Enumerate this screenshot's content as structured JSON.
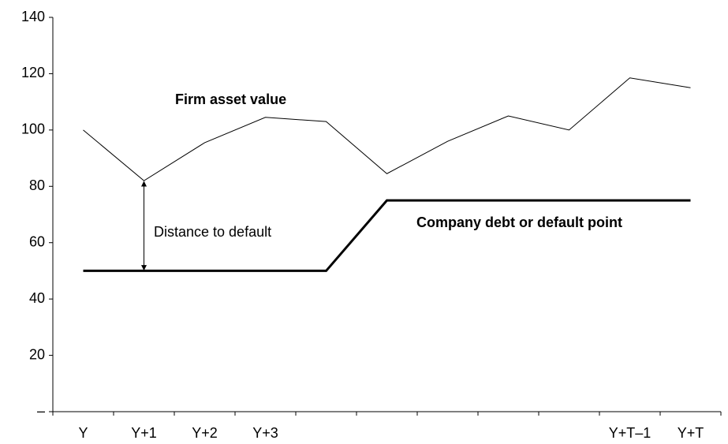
{
  "chart_data": {
    "type": "line",
    "categories": [
      "Y",
      "Y+1",
      "Y+2",
      "Y+3",
      null,
      null,
      null,
      null,
      null,
      "Y+T–1",
      "Y+T"
    ],
    "series": [
      {
        "name": "Firm asset value",
        "color": "#000000",
        "line_width": 1,
        "values": [
          100,
          82,
          95.5,
          104.5,
          103,
          84.5,
          96,
          105,
          100,
          118.5,
          115
        ]
      },
      {
        "name": "Company debt or default point",
        "color": "#000000",
        "line_width": 3,
        "values": [
          50,
          50,
          50,
          50,
          50,
          75,
          75,
          75,
          75,
          75,
          75
        ]
      }
    ],
    "annotations": [
      "Distance to default"
    ],
    "ylim": [
      0,
      140
    ],
    "yticks": [
      {
        "value": 0,
        "label": "–"
      },
      20,
      40,
      60,
      80,
      100,
      120,
      140
    ],
    "grid": false
  }
}
